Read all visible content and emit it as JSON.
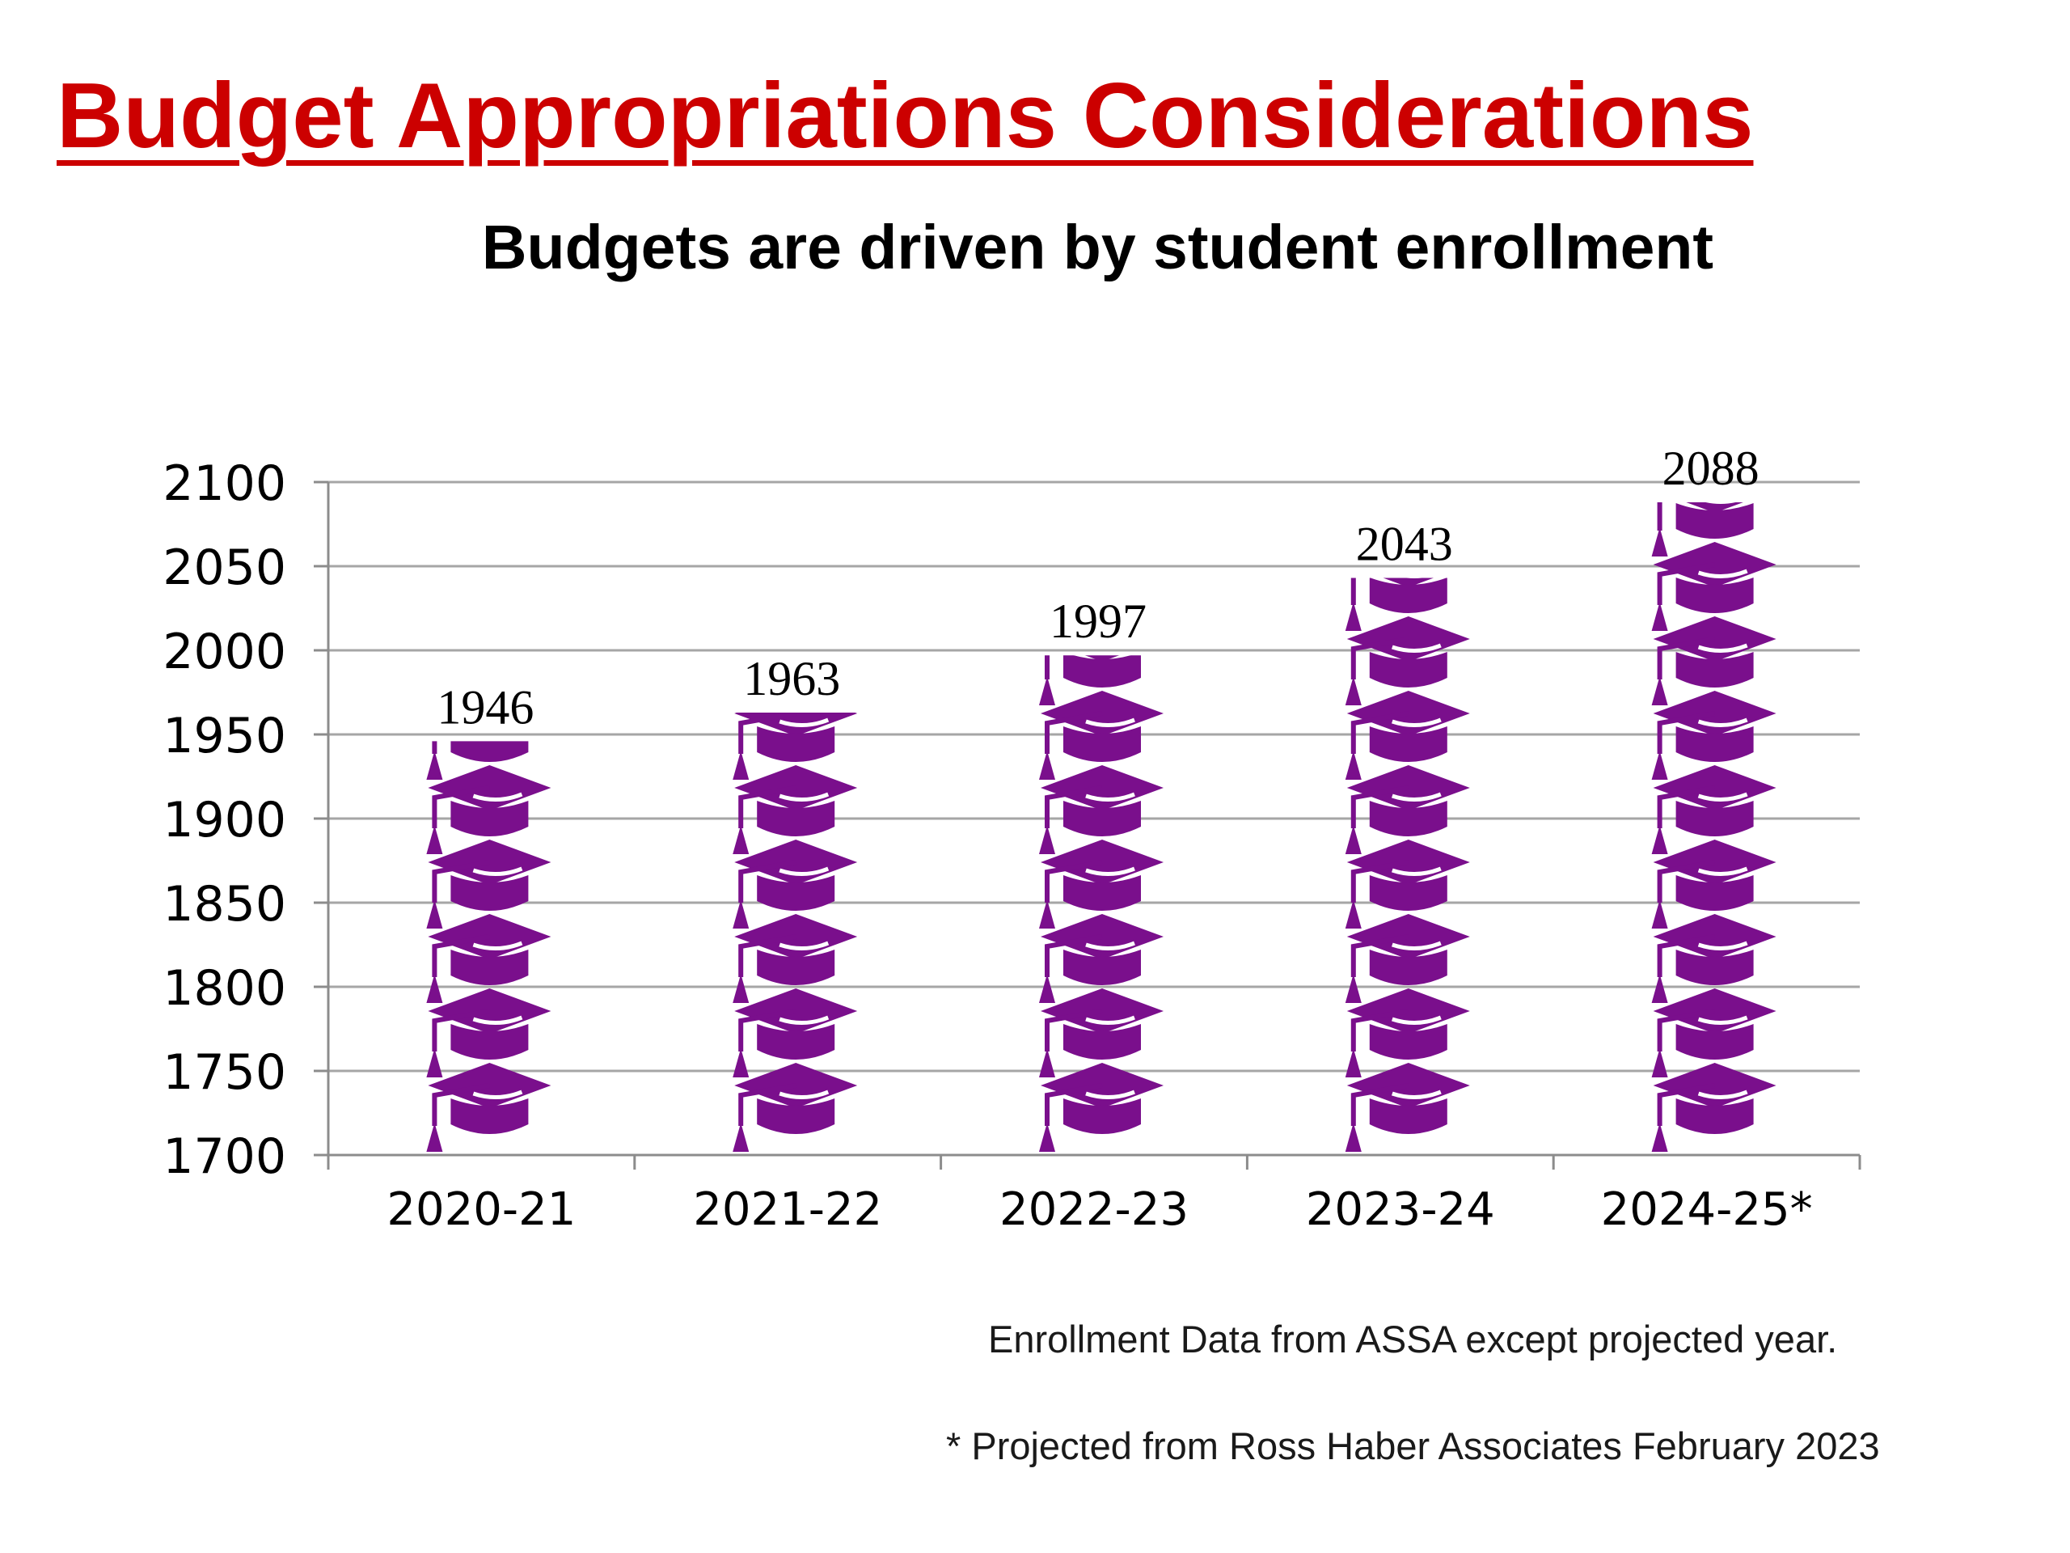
{
  "slide": {
    "title": "Budget Appropriations Considerations",
    "title_color": "#cc0000"
  },
  "chart_data": {
    "type": "bar",
    "title": "Budgets are driven by student enrollment",
    "categories": [
      "2020-21",
      "2021-22",
      "2022-23",
      "2023-24",
      "2024-25*"
    ],
    "values": [
      1946,
      1963,
      1997,
      2043,
      2088
    ],
    "data_labels": [
      "1946",
      "1963",
      "1997",
      "2043",
      "2088"
    ],
    "xlabel": "",
    "ylabel": "",
    "ylim": [
      1700,
      2100
    ],
    "y_ticks": [
      1700,
      1750,
      1800,
      1850,
      1900,
      1950,
      2000,
      2050,
      2100
    ],
    "y_tick_labels": [
      "1700",
      "1750",
      "1800",
      "1850",
      "1900",
      "1950",
      "2000",
      "2050",
      "2100"
    ],
    "grid": true,
    "legend": "none",
    "bar_fill": "stacked graduation-cap pictograph",
    "colors": {
      "bar": "#7a0f8c",
      "gridline": "#a6a6a6",
      "axis": "#8c8c8c"
    },
    "icon": "graduation-cap-icon"
  },
  "notes": {
    "source": "Enrollment Data from ASSA except projected year.",
    "projection": "* Projected from Ross Haber Associates February 2023"
  }
}
